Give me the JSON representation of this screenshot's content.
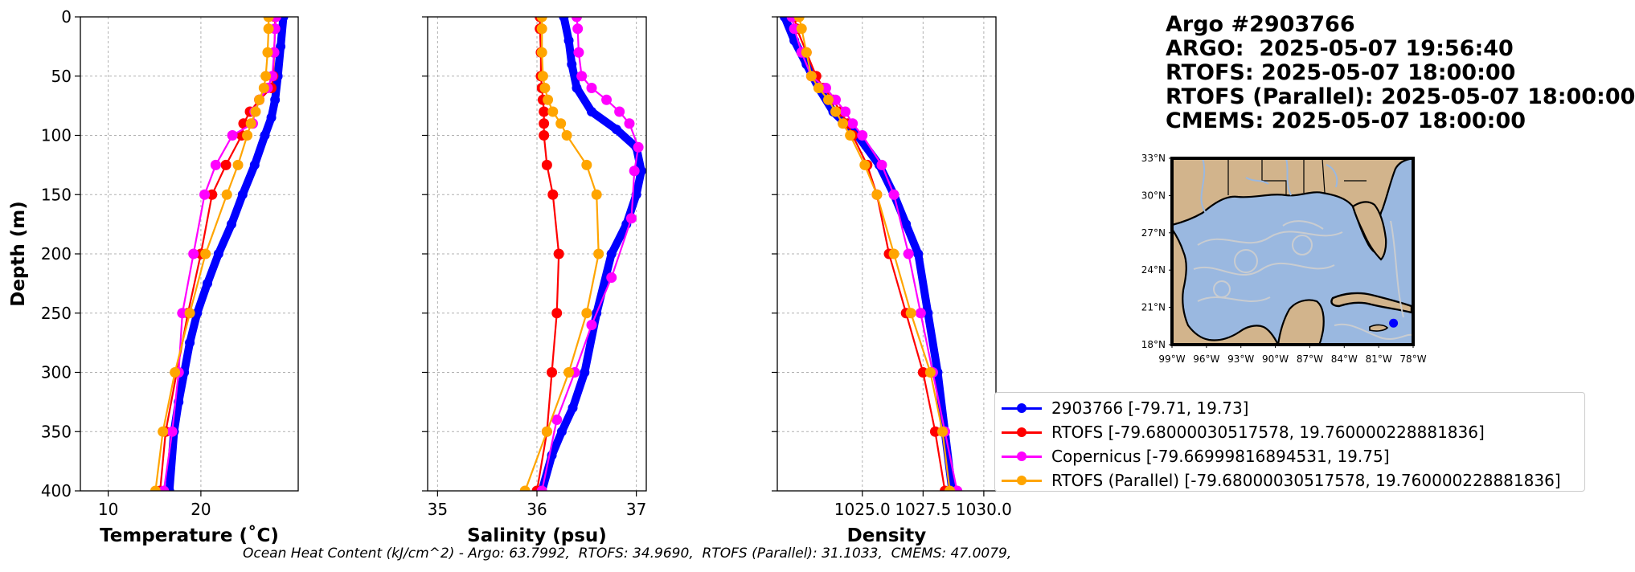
{
  "title": {
    "lines": [
      "Argo #2903766",
      "ARGO:  2025-05-07 19:56:40",
      "RTOFS: 2025-05-07 18:00:00",
      "RTOFS (Parallel): 2025-05-07 18:00:00",
      "CMEMS: 2025-05-07 18:00:00"
    ]
  },
  "ohc_text": "Ocean Heat Content (kJ/cm^2) - Argo: 63.7992,  RTOFS: 34.9690,  RTOFS (Parallel): 31.1033,  CMEMS: 47.0079,",
  "legend": [
    {
      "label": "2903766 [-79.71, 19.73]",
      "color": "#0000ff"
    },
    {
      "label": "RTOFS [-79.68000030517578, 19.760000228881836]",
      "color": "#ff0000"
    },
    {
      "label": "Copernicus [-79.66999816894531, 19.75]",
      "color": "#ff00ff"
    },
    {
      "label": "RTOFS (Parallel) [-79.68000030517578, 19.760000228881836]",
      "color": "#ffa500"
    }
  ],
  "colors": {
    "argo": "#0000ff",
    "rtofs": "#ff0000",
    "copernicus": "#ff00ff",
    "parallel": "#ffa500",
    "land": "#d2b48c",
    "ocean": "#9ab8e0",
    "grid": "#b0b0b0"
  },
  "chart_data": [
    {
      "type": "line",
      "xlabel": "Temperature (˚C)",
      "ylabel": "Depth (m)",
      "xlim": [
        7,
        30.5
      ],
      "ylim": [
        400,
        0
      ],
      "xticks": [
        10,
        20
      ],
      "yticks": [
        0,
        50,
        100,
        150,
        200,
        250,
        300,
        350,
        400
      ],
      "grid": true,
      "series": [
        {
          "name": "2903766 [-79.71, 19.73]",
          "key": "argo",
          "x": [
            28.9,
            28.6,
            28.3,
            28.0,
            27.6,
            26.9,
            25.8,
            24.5,
            23.3,
            21.9,
            20.7,
            19.6,
            18.8,
            18.2,
            17.6,
            17.1,
            16.6
          ],
          "y": [
            0,
            25,
            50,
            70,
            85,
            100,
            125,
            150,
            175,
            200,
            225,
            250,
            275,
            300,
            325,
            350,
            400
          ]
        },
        {
          "name": "RTOFS [-79.68000030517578, 19.760000228881836]",
          "key": "rtofs",
          "x": [
            28.0,
            28.0,
            27.9,
            27.8,
            27.6,
            26.3,
            25.3,
            24.6,
            24.4,
            22.7,
            21.2,
            20.0,
            18.6,
            17.4,
            16.2,
            15.6
          ],
          "y": [
            0,
            10,
            30,
            50,
            60,
            70,
            80,
            90,
            100,
            125,
            150,
            200,
            250,
            300,
            350,
            400
          ]
        },
        {
          "name": "Copernicus [-79.66999816894531, 19.75]",
          "key": "copernicus",
          "x": [
            28.1,
            28.0,
            27.9,
            27.7,
            27.2,
            26.3,
            25.8,
            25.6,
            23.4,
            21.6,
            20.4,
            19.2,
            18.0,
            17.6,
            16.9,
            16.0
          ],
          "y": [
            0,
            10,
            30,
            50,
            60,
            70,
            80,
            90,
            100,
            125,
            150,
            200,
            250,
            300,
            350,
            400
          ]
        },
        {
          "name": "RTOFS (Parallel) [-79.68000030517578, 19.760000228881836]",
          "key": "parallel",
          "x": [
            27.3,
            27.3,
            27.2,
            27.0,
            26.8,
            26.3,
            25.9,
            25.4,
            25.0,
            24.0,
            22.8,
            20.5,
            18.8,
            17.2,
            15.9,
            15.1
          ],
          "y": [
            0,
            10,
            30,
            50,
            60,
            70,
            80,
            90,
            100,
            125,
            150,
            200,
            250,
            300,
            350,
            400
          ]
        }
      ]
    },
    {
      "type": "line",
      "xlabel": "Salinity (psu)",
      "ylabel": "",
      "xlim": [
        34.9,
        37.1
      ],
      "ylim": [
        400,
        0
      ],
      "xticks": [
        35,
        36,
        37
      ],
      "yticks": [
        0,
        50,
        100,
        150,
        200,
        250,
        300,
        350,
        400
      ],
      "grid": true,
      "series": [
        {
          "name": "2903766 [-79.71, 19.73]",
          "key": "argo",
          "x": [
            36.27,
            36.32,
            36.35,
            36.4,
            36.55,
            36.8,
            37.0,
            37.05,
            37.0,
            36.9,
            36.75,
            36.6,
            36.48,
            36.36,
            36.25,
            36.15,
            36.05
          ],
          "y": [
            0,
            20,
            40,
            60,
            80,
            95,
            110,
            130,
            150,
            175,
            200,
            250,
            300,
            330,
            350,
            370,
            400
          ]
        },
        {
          "name": "RTOFS [-79.68000030517578, 19.760000228881836]",
          "key": "rtofs",
          "x": [
            36.03,
            36.03,
            36.04,
            36.04,
            36.05,
            36.06,
            36.07,
            36.07,
            36.07,
            36.1,
            36.16,
            36.22,
            36.2,
            36.15,
            36.1,
            36.0
          ],
          "y": [
            0,
            10,
            30,
            50,
            60,
            70,
            80,
            90,
            100,
            125,
            150,
            200,
            250,
            300,
            350,
            400
          ]
        },
        {
          "name": "Copernicus [-79.66999816894531, 19.75]",
          "key": "copernicus",
          "x": [
            36.4,
            36.41,
            36.42,
            36.45,
            36.55,
            36.7,
            36.83,
            36.93,
            37.02,
            36.98,
            36.95,
            36.75,
            36.55,
            36.38,
            36.2,
            36.05
          ],
          "y": [
            0,
            10,
            30,
            50,
            60,
            70,
            80,
            90,
            110,
            130,
            170,
            220,
            260,
            300,
            340,
            400
          ]
        },
        {
          "name": "RTOFS (Parallel) [-79.68000030517578, 19.760000228881836]",
          "key": "parallel",
          "x": [
            36.05,
            36.05,
            36.05,
            36.06,
            36.08,
            36.11,
            36.16,
            36.24,
            36.3,
            36.5,
            36.6,
            36.62,
            36.5,
            36.32,
            36.1,
            35.88
          ],
          "y": [
            0,
            10,
            30,
            50,
            60,
            70,
            80,
            90,
            100,
            125,
            150,
            200,
            250,
            300,
            350,
            400
          ]
        }
      ]
    },
    {
      "type": "line",
      "xlabel": "Density",
      "ylabel": "",
      "xlim": [
        1021.5,
        1030.5
      ],
      "ylim": [
        400,
        0
      ],
      "xticks": [
        1025.0,
        1027.5,
        1030.0
      ],
      "xticklabels": [
        "1025.0",
        "1027.5",
        "1030.0"
      ],
      "yticks": [
        0,
        50,
        100,
        150,
        200,
        250,
        300,
        350,
        400
      ],
      "grid": true,
      "series": [
        {
          "name": "2903766 [-79.71, 19.73]",
          "key": "argo",
          "x": [
            1021.8,
            1022.2,
            1022.7,
            1023.2,
            1023.8,
            1024.8,
            1025.7,
            1026.3,
            1026.8,
            1027.3,
            1027.7,
            1028.1,
            1028.4,
            1028.7
          ],
          "y": [
            0,
            20,
            40,
            60,
            80,
            100,
            125,
            150,
            175,
            200,
            250,
            300,
            350,
            400
          ]
        },
        {
          "name": "RTOFS [-79.68000030517578, 19.760000228881836]",
          "key": "rtofs",
          "x": [
            1022.2,
            1022.3,
            1022.7,
            1023.1,
            1023.4,
            1023.8,
            1024.1,
            1024.4,
            1024.6,
            1025.2,
            1025.6,
            1026.1,
            1026.8,
            1027.5,
            1028.0,
            1028.4
          ],
          "y": [
            0,
            10,
            30,
            50,
            60,
            70,
            80,
            90,
            100,
            125,
            150,
            200,
            250,
            300,
            350,
            400
          ]
        },
        {
          "name": "Copernicus [-79.66999816894531, 19.75]",
          "key": "copernicus",
          "x": [
            1022.1,
            1022.2,
            1022.5,
            1022.9,
            1023.5,
            1023.9,
            1024.3,
            1024.6,
            1025.0,
            1025.8,
            1026.3,
            1026.9,
            1027.4,
            1027.9,
            1028.4,
            1028.9
          ],
          "y": [
            0,
            10,
            30,
            50,
            60,
            70,
            80,
            90,
            100,
            125,
            150,
            200,
            250,
            300,
            350,
            400
          ]
        },
        {
          "name": "RTOFS (Parallel) [-79.68000030517578, 19.760000228881836]",
          "key": "parallel",
          "x": [
            1022.4,
            1022.5,
            1022.7,
            1022.9,
            1023.2,
            1023.6,
            1023.9,
            1024.2,
            1024.5,
            1025.1,
            1025.6,
            1026.3,
            1027.0,
            1027.8,
            1028.3,
            1028.6
          ],
          "y": [
            0,
            10,
            30,
            50,
            60,
            70,
            80,
            90,
            100,
            125,
            150,
            200,
            250,
            300,
            350,
            400
          ]
        }
      ]
    }
  ],
  "map": {
    "lat_ticks": [
      "33°N",
      "30°N",
      "27°N",
      "24°N",
      "21°N",
      "18°N"
    ],
    "lon_ticks": [
      "99°W",
      "96°W",
      "93°W",
      "90°W",
      "87°W",
      "84°W",
      "81°W",
      "78°W"
    ],
    "marker_lon": -79.71,
    "marker_lat": 19.73
  }
}
